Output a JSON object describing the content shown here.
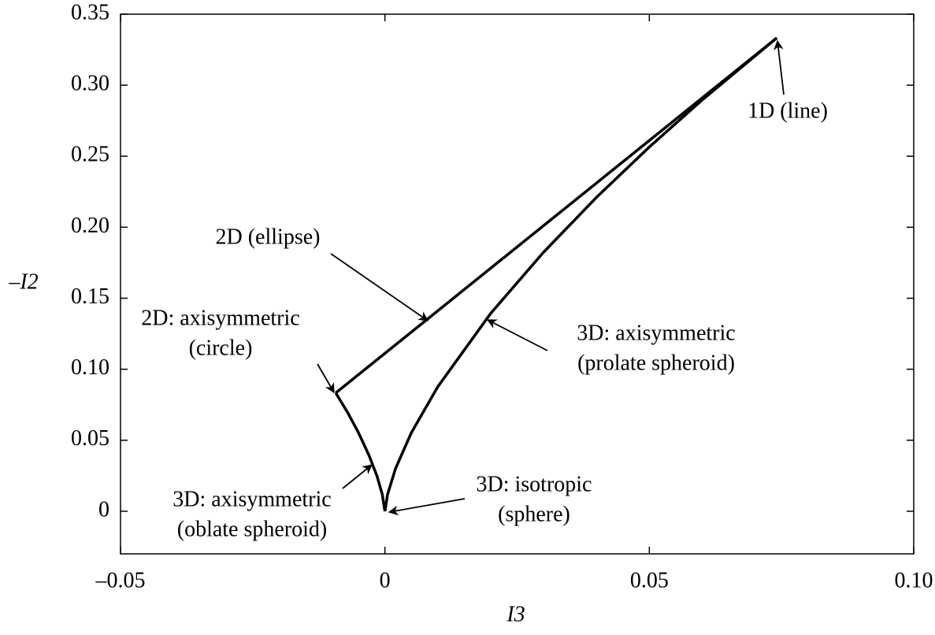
{
  "chart_data": {
    "type": "line",
    "xlabel": "I3",
    "ylabel": "–I2",
    "xlim": [
      -0.05,
      0.1
    ],
    "ylim": [
      -0.03,
      0.35
    ],
    "xticks": [
      {
        "value": -0.05,
        "label": "–0.05"
      },
      0,
      0.05,
      {
        "value": 0.1,
        "label": "0.10"
      }
    ],
    "yticks": [
      0,
      0.05,
      {
        "value": 0.1,
        "label": "0.10"
      },
      0.15,
      {
        "value": 0.2,
        "label": "0.20"
      },
      0.25,
      {
        "value": 0.3,
        "label": "0.30"
      },
      0.35
    ],
    "series": [
      {
        "color": "#000000",
        "x": [
          -0.0093,
          0.0741
        ],
        "values": [
          0.0833,
          0.3333
        ]
      },
      {
        "color": "#000000",
        "x": [
          0,
          0.0005,
          0.002,
          0.005,
          0.01,
          0.02,
          0.03,
          0.04,
          0.05,
          0.06,
          0.0741
        ],
        "values": [
          0,
          0.0119,
          0.03,
          0.0553,
          0.0877,
          0.1393,
          0.1824,
          0.221,
          0.2565,
          0.2896,
          0.3333
        ]
      },
      {
        "color": "#000000",
        "x": [
          -0.0093,
          -0.007,
          -0.005,
          -0.003,
          -0.0015,
          -0.0005,
          0
        ],
        "values": [
          0.0833,
          0.0692,
          0.0553,
          0.0393,
          0.0248,
          0.0119,
          0
        ]
      }
    ],
    "annotations": [
      {
        "lines": [
          "1D (line)"
        ]
      },
      {
        "lines": [
          "2D (ellipse)"
        ]
      },
      {
        "lines": [
          "2D: axisymmetric",
          "(circle)"
        ]
      },
      {
        "lines": [
          "3D: axisymmetric",
          "(prolate spheroid)"
        ]
      },
      {
        "lines": [
          "3D: axisymmetric",
          "(oblate spheroid)"
        ]
      },
      {
        "lines": [
          "3D: isotropic",
          "(sphere)"
        ]
      }
    ]
  }
}
